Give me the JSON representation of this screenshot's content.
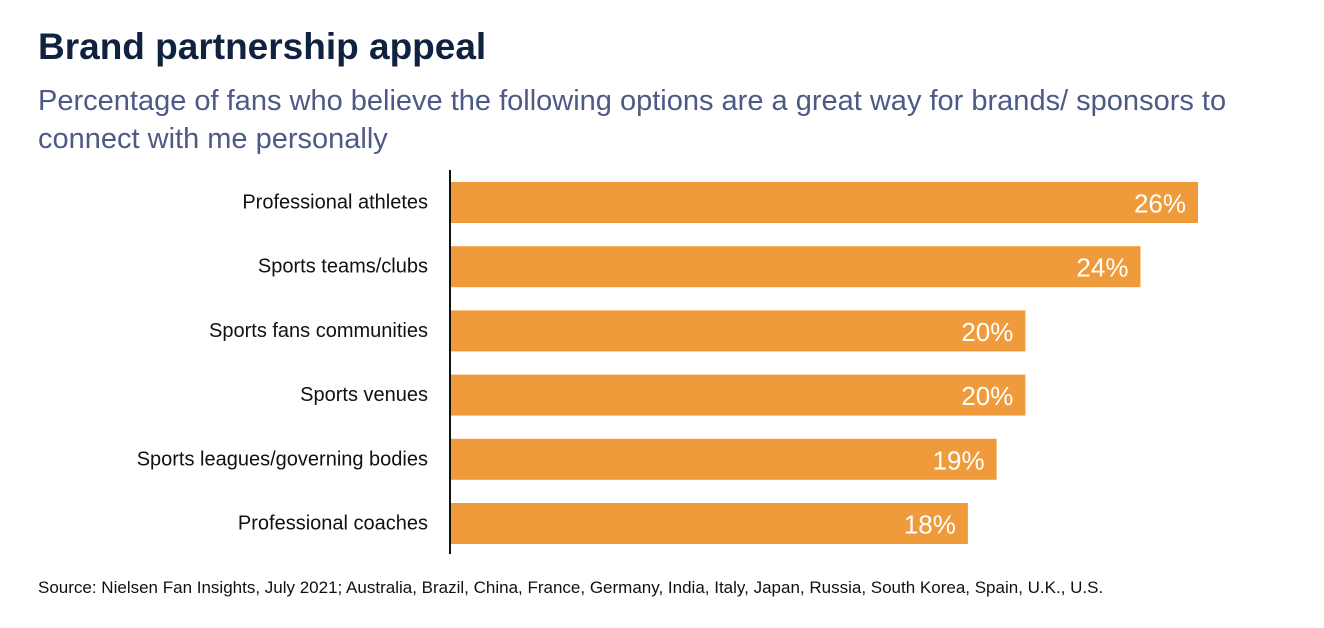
{
  "chart_data": {
    "type": "bar",
    "orientation": "horizontal",
    "title": "Brand partnership appeal",
    "subtitle": "Percentage of fans who believe the following options are a great way for brands/ sponsors to connect with me personally",
    "categories": [
      "Professional athletes",
      "Sports teams/clubs",
      "Sports fans communities",
      "Sports venues",
      "Sports leagues/governing bodies",
      "Professional coaches"
    ],
    "values": [
      26,
      24,
      20,
      20,
      19,
      18
    ],
    "value_labels": [
      "26%",
      "24%",
      "20%",
      "20%",
      "19%",
      "18%"
    ],
    "unit": "%",
    "xlim": [
      0,
      30
    ],
    "grid": false,
    "legend": "none",
    "bar_color": "#f09b3b",
    "source": "Source: Nielsen Fan Insights, July 2021; Australia, Brazil, China, France, Germany, India, Italy, Japan, Russia, South Korea, Spain, U.K., U.S."
  },
  "colors": {
    "title": "#0f2240",
    "subtitle": "#4d5a85",
    "axis": "#111111",
    "value_text": "#ffffff"
  }
}
